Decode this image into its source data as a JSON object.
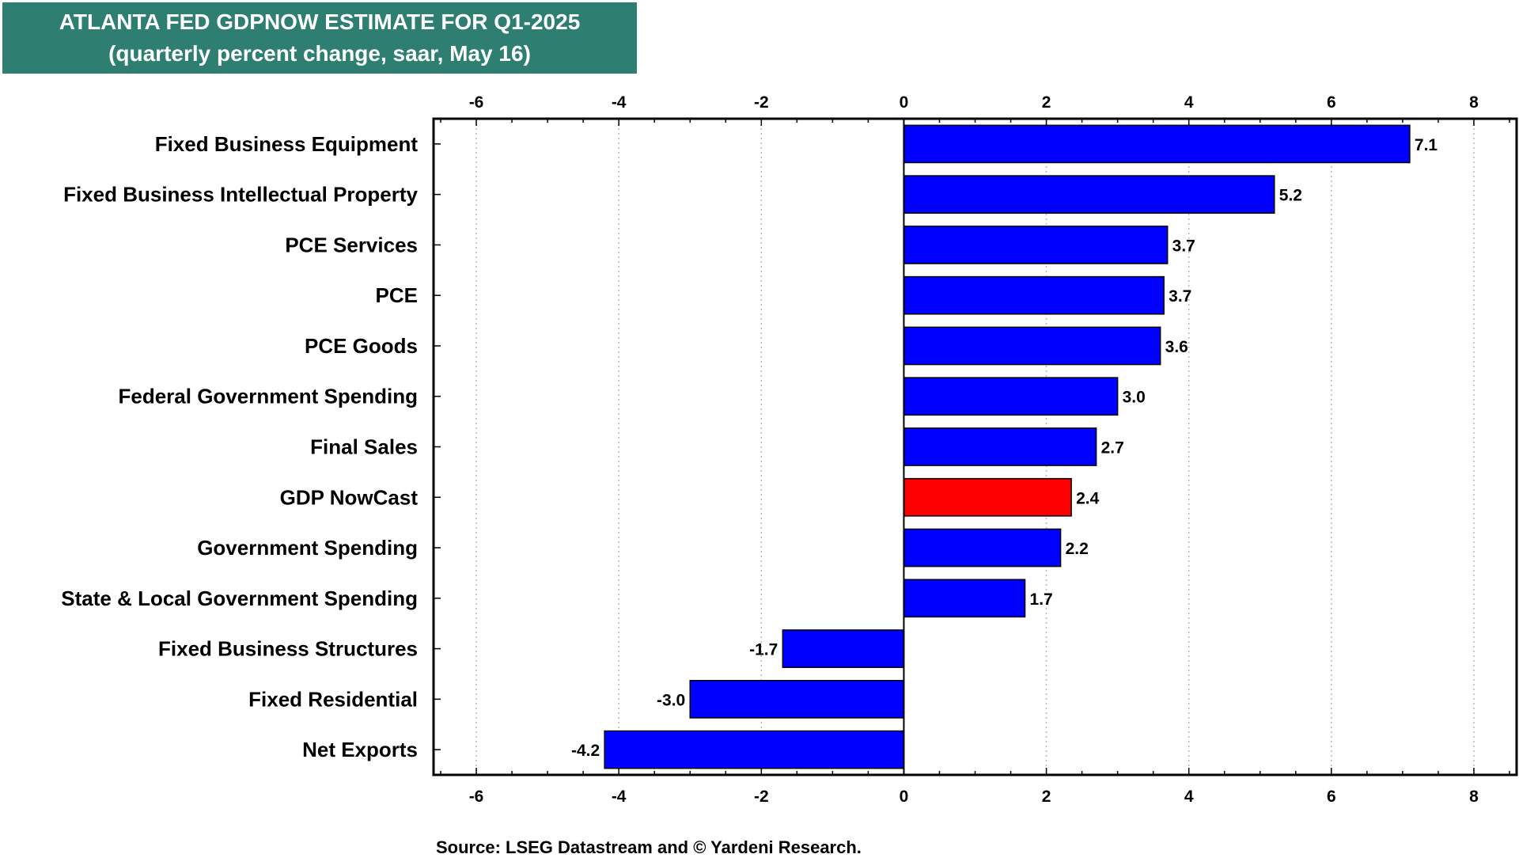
{
  "header": {
    "title_line1": "ATLANTA FED GDPNOW ESTIMATE FOR Q1-2025",
    "title_line2": "(quarterly percent change, saar, May 16)"
  },
  "source": "Source: LSEG Datastream and © Yardeni Research.",
  "chart_data": {
    "type": "bar",
    "orientation": "horizontal",
    "title": "ATLANTA FED GDPNOW ESTIMATE FOR Q1-2025",
    "subtitle": "(quarterly percent change, saar, May 16)",
    "xlim": [
      -6.6,
      8.6
    ],
    "xticks": [
      -6,
      -4,
      -2,
      0,
      2,
      4,
      6,
      8
    ],
    "grid": "vertical dotted",
    "categories": [
      "Fixed Business Equipment",
      "Fixed Business Intellectual Property",
      "PCE Services",
      "PCE",
      "PCE Goods",
      "Federal Government Spending",
      "Final Sales",
      "GDP NowCast",
      "Government Spending",
      "State & Local Government Spending",
      "Fixed Business Structures",
      "Fixed Residential",
      "Net Exports"
    ],
    "values": [
      7.1,
      5.2,
      3.7,
      3.65,
      3.6,
      3.0,
      2.7,
      2.35,
      2.2,
      1.7,
      -1.7,
      -3.0,
      -4.2
    ],
    "value_labels": [
      "7.1",
      "5.2",
      "3.7",
      "3.7",
      "3.6",
      "3.0",
      "2.7",
      "2.4",
      "2.2",
      "1.7",
      "-1.7",
      "-3.0",
      "-4.2"
    ],
    "colors": {
      "default": "#0000ff",
      "highlight": "#ff0000",
      "highlight_category": "GDP NowCast"
    }
  }
}
